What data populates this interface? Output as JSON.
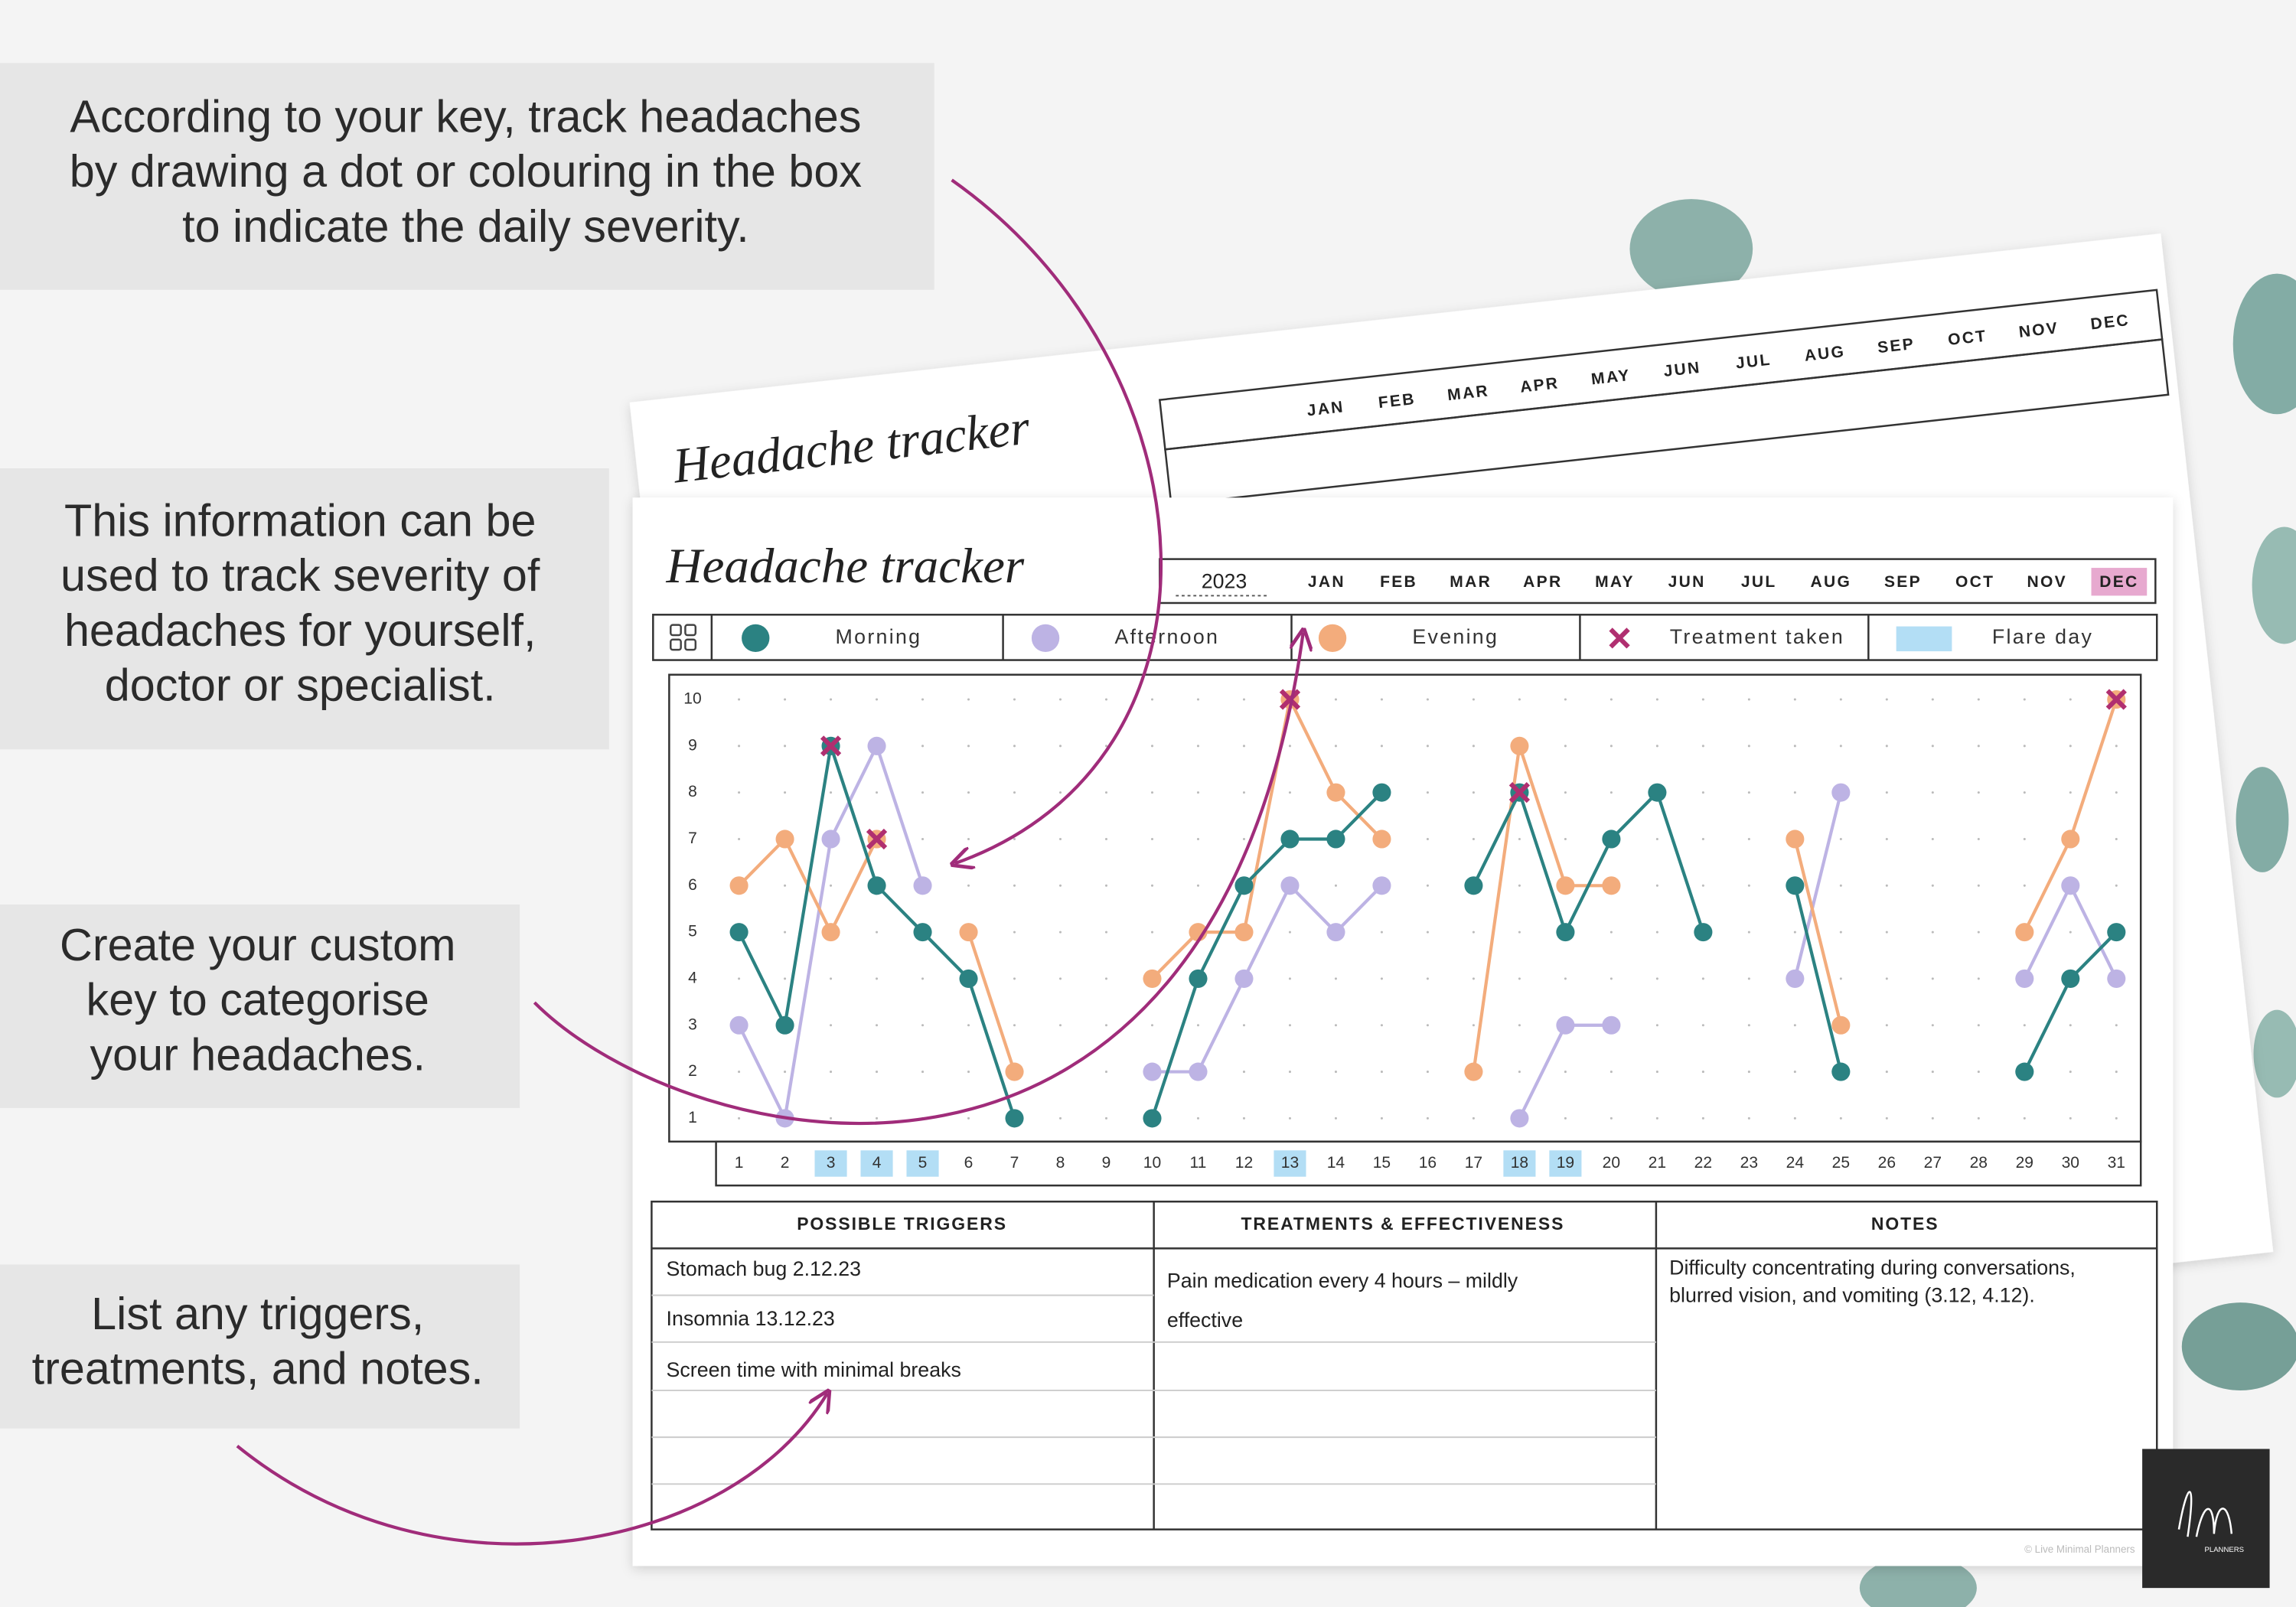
{
  "callouts": [
    [
      "According to your key, track headaches",
      "by drawing a dot or colouring in the box",
      "to indicate the daily severity."
    ],
    [
      "This information can be",
      "used to track severity of",
      "headaches for yourself,",
      "doctor or specialist."
    ],
    [
      "Create your custom",
      "key to categorise",
      "your headaches."
    ],
    [
      "List any triggers,",
      "treatments, and notes."
    ]
  ],
  "back_sheet": {
    "title": "Headache tracker",
    "months": [
      "JAN",
      "FEB",
      "MAR",
      "APR",
      "MAY",
      "JUN",
      "JUL",
      "AUG",
      "SEP",
      "OCT",
      "NOV",
      "DEC"
    ]
  },
  "tracker": {
    "title": "Headache tracker",
    "year": "2023",
    "months": [
      "JAN",
      "FEB",
      "MAR",
      "APR",
      "MAY",
      "JUN",
      "JUL",
      "AUG",
      "SEP",
      "OCT",
      "NOV",
      "DEC"
    ],
    "selected_month": 11,
    "selected_color": "#e7a9cf"
  },
  "chart_data": {
    "type": "line",
    "x": [
      1,
      2,
      3,
      4,
      5,
      6,
      7,
      8,
      9,
      10,
      11,
      12,
      13,
      14,
      15,
      16,
      17,
      18,
      19,
      20,
      21,
      22,
      23,
      24,
      25,
      26,
      27,
      28,
      29,
      30,
      31
    ],
    "xlim": [
      0.5,
      31.5
    ],
    "ylim": [
      0.5,
      10.5
    ],
    "yticks": [
      1,
      2,
      3,
      4,
      5,
      6,
      7,
      8,
      9,
      10
    ],
    "grid": "dots",
    "series": [
      {
        "name": "Morning",
        "color": "#2b8282",
        "marker": "dot",
        "line": true,
        "values": [
          5,
          3,
          9,
          6,
          5,
          4,
          1,
          null,
          null,
          1,
          4,
          6,
          7,
          7,
          8,
          null,
          6,
          8,
          5,
          7,
          8,
          5,
          null,
          6,
          2,
          null,
          null,
          null,
          2,
          4,
          5
        ]
      },
      {
        "name": "Afternoon",
        "color": "#bdb3e4",
        "marker": "dot",
        "line": true,
        "values": [
          3,
          1,
          7,
          9,
          6,
          null,
          null,
          null,
          null,
          2,
          2,
          4,
          6,
          5,
          6,
          null,
          null,
          1,
          3,
          3,
          null,
          null,
          null,
          4,
          8,
          null,
          null,
          null,
          4,
          6,
          4
        ]
      },
      {
        "name": "Evening",
        "color": "#f3ac7c",
        "marker": "dot",
        "line": true,
        "values": [
          6,
          7,
          5,
          7,
          null,
          5,
          2,
          null,
          null,
          4,
          5,
          5,
          10,
          8,
          7,
          null,
          2,
          9,
          6,
          6,
          null,
          null,
          null,
          7,
          3,
          null,
          null,
          null,
          5,
          7,
          10
        ]
      },
      {
        "name": "Treatment taken",
        "color": "#b02f70",
        "marker": "x",
        "line": false,
        "values": [
          null,
          null,
          9,
          7,
          null,
          null,
          null,
          null,
          null,
          null,
          null,
          null,
          10,
          null,
          null,
          null,
          null,
          8,
          null,
          null,
          null,
          null,
          null,
          null,
          null,
          null,
          null,
          null,
          null,
          null,
          10
        ]
      }
    ],
    "flare": {
      "name": "Flare day",
      "color": "#b3def5",
      "days": [
        3,
        4,
        5,
        13,
        18,
        19
      ]
    }
  },
  "tables": {
    "triggers": {
      "header": "POSSIBLE TRIGGERS",
      "rows": [
        "Stomach bug 2.12.23",
        "Insomnia 13.12.23",
        "Screen time with minimal breaks"
      ]
    },
    "treatments": {
      "header": "TREATMENTS & EFFECTIVENESS",
      "lines": [
        "Pain medication every 4 hours – mildly",
        "effective"
      ]
    },
    "notes": {
      "header": "NOTES",
      "lines": [
        "Difficulty concentrating during conversations,",
        "blurred vision, and vomiting (3.12, 4.12)."
      ]
    }
  },
  "footer": {
    "copyright": "© Live Minimal Planners",
    "logo": "PLANNERS"
  }
}
